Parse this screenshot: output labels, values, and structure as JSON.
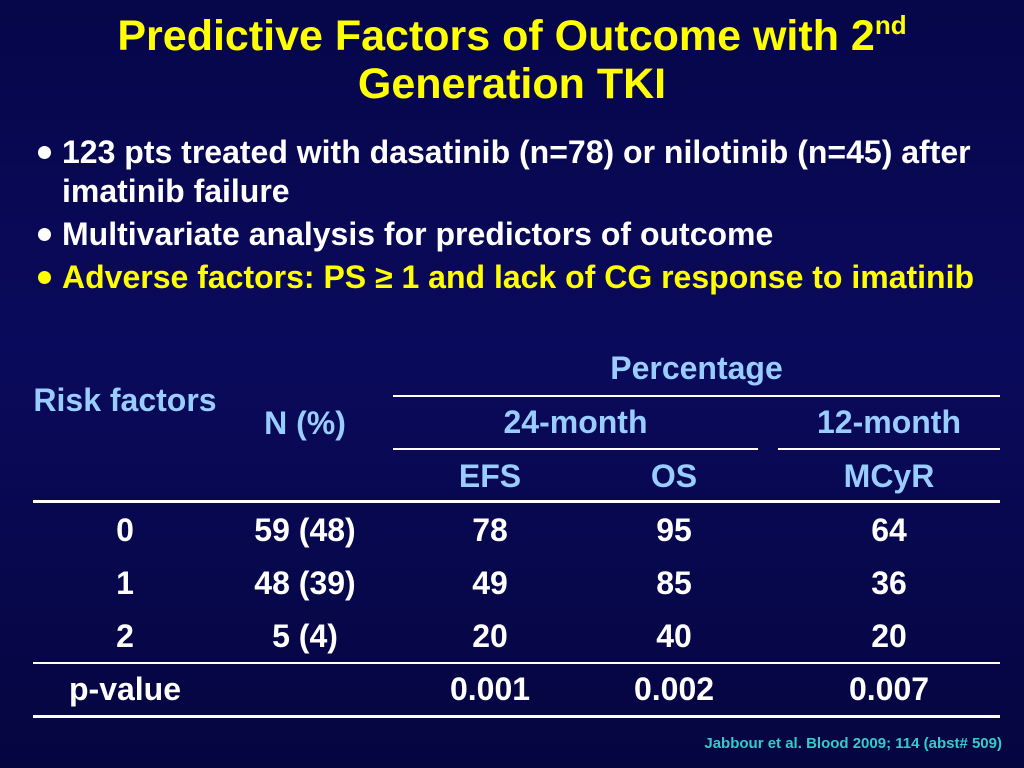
{
  "title": {
    "line1": "Predictive Factors of Outcome with 2",
    "sup": "nd",
    "line2": "Generation TKI"
  },
  "bullets": [
    {
      "text": "123 pts treated with dasatinib (n=78) or nilotinib (n=45) after imatinib failure",
      "color": "#ffffff"
    },
    {
      "text": "Multivariate analysis for predictors of outcome",
      "color": "#ffffff"
    },
    {
      "text": "Adverse factors: PS ≥ 1 and lack of CG response to imatinib",
      "color": "#ffff00"
    }
  ],
  "table": {
    "header": {
      "risk_factors": "Risk factors",
      "n_pct": "N (%)",
      "percentage": "Percentage",
      "group_24": "24-month",
      "group_12": "12-month",
      "efs": "EFS",
      "os": "OS",
      "mcyr": "MCyR"
    },
    "rows": [
      {
        "risk": "0",
        "n": "59 (48)",
        "efs": "78",
        "os": "95",
        "mcyr": "64"
      },
      {
        "risk": "1",
        "n": "48 (39)",
        "efs": "49",
        "os": "85",
        "mcyr": "36"
      },
      {
        "risk": "2",
        "n": "5 (4)",
        "efs": "20",
        "os": "40",
        "mcyr": "20"
      }
    ],
    "pvalue": {
      "label": "p-value",
      "efs": "0.001",
      "os": "0.002",
      "mcyr": "0.007"
    }
  },
  "citation": "Jabbour et al. Blood 2009; 114 (abst# 509)",
  "colors": {
    "title": "#ffff00",
    "header": "#99ccff",
    "citation": "#33cccc",
    "background": "#0a0a5c"
  }
}
